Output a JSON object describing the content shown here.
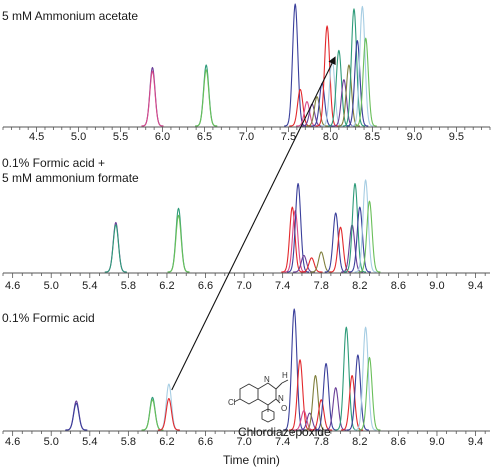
{
  "chart_data": {
    "type": "line",
    "xlabel": "Time (min)",
    "series_colors": [
      "#6a3f98",
      "#d94a8a",
      "#3a3f9b",
      "#2e9b79",
      "#e3292c",
      "#a6cde3",
      "#6abf5a",
      "#7f7f3c"
    ],
    "annotation": {
      "label": "Chlordiazepoxide",
      "from_panel": 2,
      "from_x": 6.25,
      "to_panel": 0,
      "to_x": 8.05
    },
    "panels": [
      {
        "title_lines": [
          "5 mM Ammonium acetate"
        ],
        "xlim": [
          4.1,
          9.9
        ],
        "ticks": [
          4.5,
          5.0,
          5.5,
          6.0,
          6.5,
          7.0,
          7.5,
          8.0,
          8.5,
          9.0,
          9.5
        ],
        "tick_labels": [
          "4.5",
          "5.0",
          "5.5",
          "6.0",
          "6.5",
          "7.0",
          "7.5",
          "8.0",
          "8.5",
          "9.0",
          "9.5"
        ],
        "peaks": [
          {
            "x": 5.88,
            "h": 0.48,
            "c": 0
          },
          {
            "x": 5.88,
            "h": 0.45,
            "c": 1
          },
          {
            "x": 6.52,
            "h": 0.5,
            "c": 3
          },
          {
            "x": 6.52,
            "h": 0.46,
            "c": 6
          },
          {
            "x": 7.58,
            "h": 1.0,
            "c": 2
          },
          {
            "x": 7.64,
            "h": 0.3,
            "c": 4
          },
          {
            "x": 7.72,
            "h": 0.2,
            "c": 1
          },
          {
            "x": 7.78,
            "h": 0.18,
            "c": 0
          },
          {
            "x": 7.84,
            "h": 0.24,
            "c": 7
          },
          {
            "x": 7.9,
            "h": 0.35,
            "c": 2
          },
          {
            "x": 7.96,
            "h": 0.82,
            "c": 4
          },
          {
            "x": 8.02,
            "h": 0.55,
            "c": 5
          },
          {
            "x": 8.1,
            "h": 0.62,
            "c": 3
          },
          {
            "x": 8.16,
            "h": 0.38,
            "c": 0
          },
          {
            "x": 8.22,
            "h": 0.5,
            "c": 7
          },
          {
            "x": 8.28,
            "h": 0.96,
            "c": 3
          },
          {
            "x": 8.32,
            "h": 0.7,
            "c": 2
          },
          {
            "x": 8.38,
            "h": 0.98,
            "c": 5
          },
          {
            "x": 8.42,
            "h": 0.72,
            "c": 6
          }
        ]
      },
      {
        "title_lines": [
          "0.1% Formic acid +",
          "5 mM ammonium formate"
        ],
        "xlim": [
          4.5,
          9.55
        ],
        "ticks": [
          4.6,
          5.0,
          5.4,
          5.8,
          6.2,
          6.6,
          7.0,
          7.4,
          7.8,
          8.2,
          8.6,
          9.0,
          9.4
        ],
        "tick_labels": [
          "4.6",
          "5.0",
          "5.4",
          "5.8",
          "6.2",
          "6.6",
          "7.0",
          "7.4",
          "7.8",
          "8.2",
          "8.6",
          "9.0",
          "9.4"
        ],
        "peaks": [
          {
            "x": 5.67,
            "h": 0.42,
            "c": 0
          },
          {
            "x": 5.67,
            "h": 0.4,
            "c": 3
          },
          {
            "x": 6.32,
            "h": 0.54,
            "c": 3
          },
          {
            "x": 6.32,
            "h": 0.48,
            "c": 6
          },
          {
            "x": 7.5,
            "h": 0.55,
            "c": 4
          },
          {
            "x": 7.53,
            "h": 0.52,
            "c": 1
          },
          {
            "x": 7.56,
            "h": 0.75,
            "c": 2
          },
          {
            "x": 7.62,
            "h": 0.14,
            "c": 0
          },
          {
            "x": 7.7,
            "h": 0.12,
            "c": 4
          },
          {
            "x": 7.8,
            "h": 0.17,
            "c": 7
          },
          {
            "x": 7.95,
            "h": 0.5,
            "c": 2
          },
          {
            "x": 8.0,
            "h": 0.38,
            "c": 4
          },
          {
            "x": 8.12,
            "h": 0.4,
            "c": 0
          },
          {
            "x": 8.15,
            "h": 0.75,
            "c": 3
          },
          {
            "x": 8.2,
            "h": 0.55,
            "c": 2
          },
          {
            "x": 8.26,
            "h": 0.78,
            "c": 5
          },
          {
            "x": 8.3,
            "h": 0.6,
            "c": 6
          }
        ]
      },
      {
        "title_lines": [
          "0.1% Formic acid"
        ],
        "xlim": [
          4.5,
          9.55
        ],
        "ticks": [
          4.6,
          5.0,
          5.4,
          5.8,
          6.2,
          6.6,
          7.0,
          7.4,
          7.8,
          8.2,
          8.6,
          9.0,
          9.4
        ],
        "tick_labels": [
          "4.6",
          "5.0",
          "5.4",
          "5.8",
          "6.2",
          "6.6",
          "7.0",
          "7.4",
          "7.8",
          "8.2",
          "8.6",
          "9.0",
          "9.4"
        ],
        "peaks": [
          {
            "x": 5.26,
            "h": 0.24,
            "c": 0
          },
          {
            "x": 5.26,
            "h": 0.22,
            "c": 2
          },
          {
            "x": 6.05,
            "h": 0.27,
            "c": 3
          },
          {
            "x": 6.05,
            "h": 0.25,
            "c": 6
          },
          {
            "x": 6.22,
            "h": 0.38,
            "c": 5
          },
          {
            "x": 6.22,
            "h": 0.26,
            "c": 4
          },
          {
            "x": 7.52,
            "h": 1.0,
            "c": 2
          },
          {
            "x": 7.58,
            "h": 0.58,
            "c": 4
          },
          {
            "x": 7.62,
            "h": 0.16,
            "c": 1
          },
          {
            "x": 7.68,
            "h": 0.14,
            "c": 0
          },
          {
            "x": 7.74,
            "h": 0.45,
            "c": 7
          },
          {
            "x": 7.8,
            "h": 0.25,
            "c": 4
          },
          {
            "x": 7.85,
            "h": 0.55,
            "c": 2
          },
          {
            "x": 7.95,
            "h": 0.35,
            "c": 0
          },
          {
            "x": 8.06,
            "h": 0.85,
            "c": 3
          },
          {
            "x": 8.12,
            "h": 0.45,
            "c": 4
          },
          {
            "x": 8.18,
            "h": 0.62,
            "c": 2
          },
          {
            "x": 8.26,
            "h": 0.85,
            "c": 5
          },
          {
            "x": 8.3,
            "h": 0.6,
            "c": 6
          }
        ]
      }
    ]
  }
}
